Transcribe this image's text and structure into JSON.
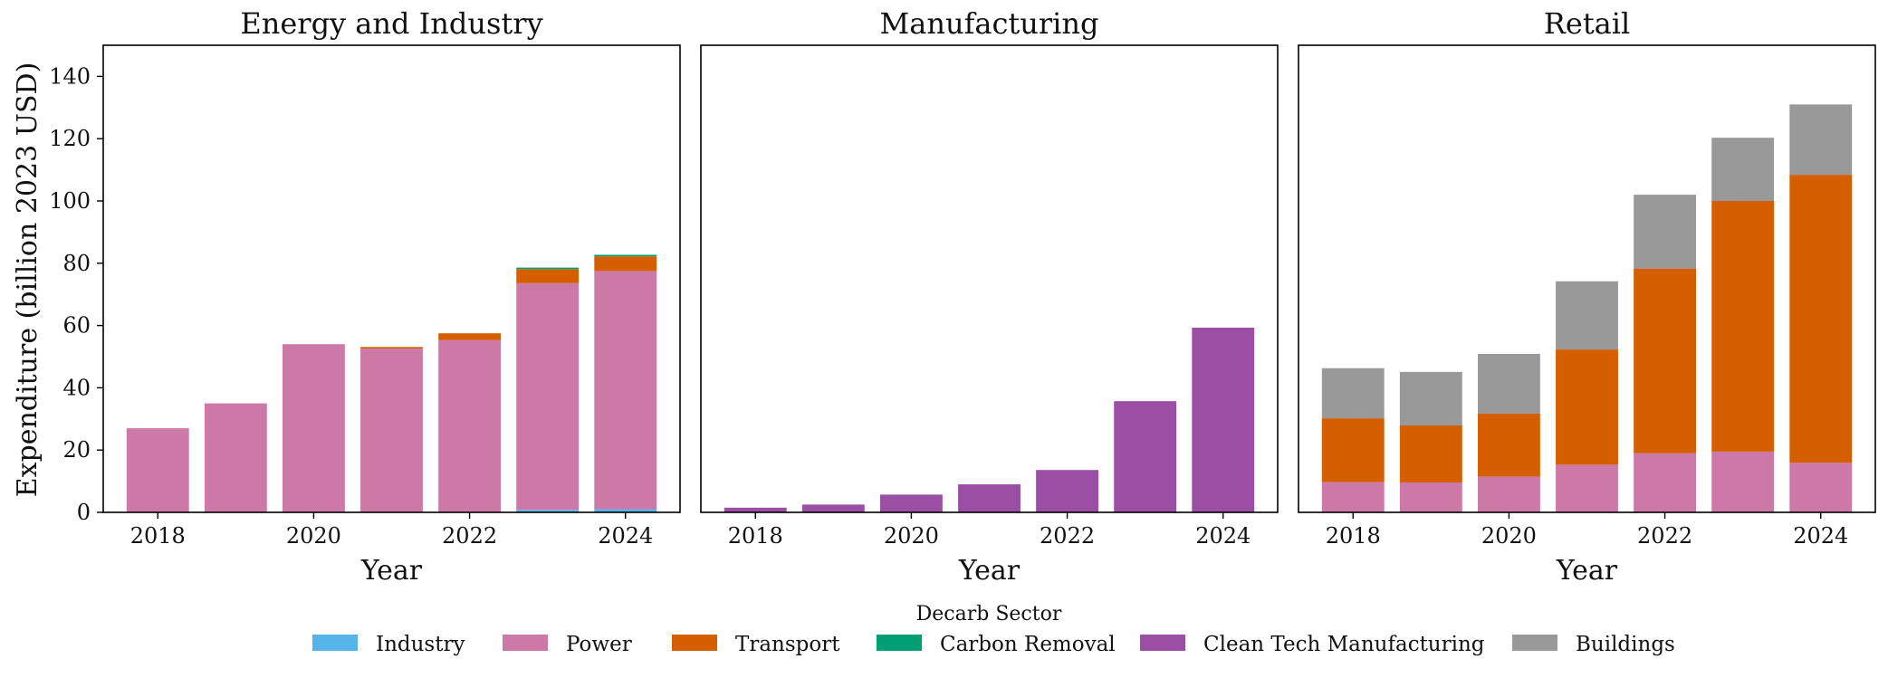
{
  "chart_data": {
    "type": "bar",
    "stacked": true,
    "ylabel": "Expenditure (billion 2023 USD)",
    "ylim": [
      0,
      150
    ],
    "yticks": [
      0,
      20,
      40,
      60,
      80,
      100,
      120,
      140
    ],
    "xticks": [
      2018,
      2020,
      2022,
      2024
    ],
    "x": [
      2018,
      2019,
      2020,
      2021,
      2022,
      2023,
      2024
    ],
    "grid": false,
    "legend": {
      "title": "Decarb Sector",
      "placement": "bottom-center",
      "entries": [
        {
          "name": "Industry",
          "color": "#56B4E9"
        },
        {
          "name": "Power",
          "color": "#CC79A7"
        },
        {
          "name": "Transport",
          "color": "#D55E00"
        },
        {
          "name": "Carbon Removal",
          "color": "#009E73"
        },
        {
          "name": "Clean Tech Manufacturing",
          "color": "#9A4FA5"
        },
        {
          "name": "Buildings",
          "color": "#999999"
        }
      ]
    },
    "panels": [
      {
        "title": "Energy and Industry",
        "xlabel": "Year",
        "series": [
          {
            "name": "Industry",
            "values": [
              0,
              0,
              0,
              0,
              0,
              0.8,
              1.0
            ]
          },
          {
            "name": "Power",
            "values": [
              27,
              35,
              54,
              52.6,
              55.3,
              72.8,
              76.5
            ]
          },
          {
            "name": "Transport",
            "values": [
              0,
              0,
              0,
              0.5,
              2.2,
              4.5,
              4.7
            ]
          },
          {
            "name": "Carbon Removal",
            "values": [
              0,
              0,
              0,
              0,
              0,
              0.5,
              0.5
            ]
          }
        ]
      },
      {
        "title": "Manufacturing",
        "xlabel": "Year",
        "series": [
          {
            "name": "Clean Tech Manufacturing",
            "values": [
              1.5,
              2.5,
              5.7,
              9.0,
              13.6,
              35.7,
              59.3
            ]
          }
        ]
      },
      {
        "title": "Retail",
        "xlabel": "Year",
        "series": [
          {
            "name": "Power",
            "values": [
              9.7,
              9.6,
              11.5,
              15.3,
              19.0,
              19.5,
              15.9
            ]
          },
          {
            "name": "Transport",
            "values": [
              20.5,
              18.3,
              20.2,
              37.0,
              59.3,
              80.5,
              92.5
            ]
          },
          {
            "name": "Buildings",
            "values": [
              16.1,
              17.2,
              19.2,
              21.9,
              23.7,
              20.3,
              22.6
            ]
          }
        ]
      }
    ]
  }
}
